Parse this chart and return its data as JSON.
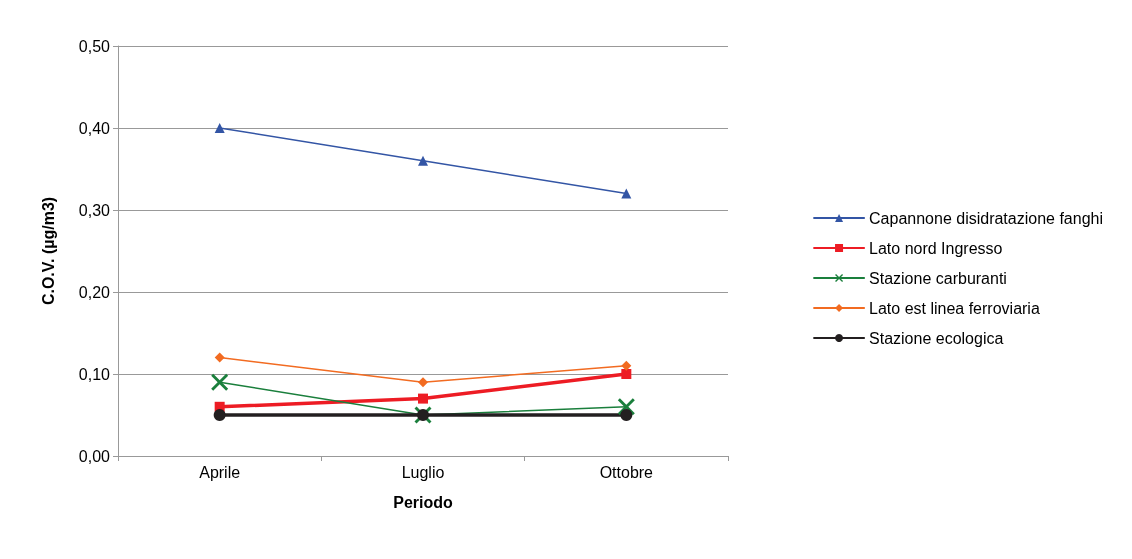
{
  "chart_data": {
    "type": "line",
    "xlabel": "Periodo",
    "ylabel": "C.O.V. (µg/m3)",
    "categories": [
      "Aprile",
      "Luglio",
      "Ottobre"
    ],
    "series": [
      {
        "name": "Capannone disidratazione fanghi",
        "color": "#3355a5",
        "marker": "triangle",
        "values": [
          0.4,
          0.36,
          0.32
        ]
      },
      {
        "name": "Lato nord Ingresso",
        "color": "#ed1c24",
        "marker": "square",
        "values": [
          0.06,
          0.07,
          0.1
        ]
      },
      {
        "name": "Stazione carburanti",
        "color": "#1a7f3c",
        "marker": "cross",
        "values": [
          0.09,
          0.05,
          0.06
        ]
      },
      {
        "name": "Lato est linea ferroviaria",
        "color": "#f26b21",
        "marker": "diamond",
        "values": [
          0.12,
          0.09,
          0.11
        ]
      },
      {
        "name": "Stazione ecologica",
        "color": "#231f20",
        "marker": "circle",
        "values": [
          0.05,
          0.05,
          0.05
        ]
      }
    ],
    "ylim": [
      0,
      0.5
    ],
    "yticks": [
      {
        "value": 0,
        "label": "0,00"
      },
      {
        "value": 0.1,
        "label": "0,10"
      },
      {
        "value": 0.2,
        "label": "0,20"
      },
      {
        "value": 0.3,
        "label": "0,30"
      },
      {
        "value": 0.4,
        "label": "0,40"
      },
      {
        "value": 0.5,
        "label": "0,50"
      }
    ],
    "grid": "y",
    "legend": "right",
    "line_style": "solid"
  }
}
